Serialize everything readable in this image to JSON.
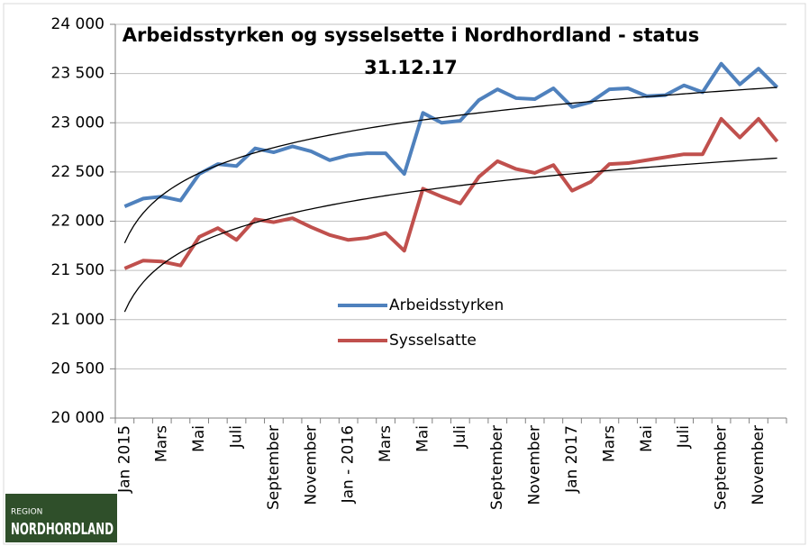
{
  "chart_data": {
    "type": "line",
    "title": [
      "Arbeidsstyrken og sysselsette i  Nordhordland - status",
      "31.12.17"
    ],
    "categories": [
      "Jan 2015",
      null,
      "Mars",
      null,
      "Mai",
      null,
      "Juli",
      null,
      "September",
      null,
      "November",
      null,
      "Jan - 2016",
      null,
      "Mars",
      null,
      "Mai",
      null,
      "Juli",
      null,
      "September",
      null,
      "November",
      null,
      "Jan 2017",
      null,
      "Mars",
      null,
      "Mai",
      null,
      "Juli",
      null,
      "September",
      null,
      "November",
      null
    ],
    "series": [
      {
        "name": "Arbeidsstyrken",
        "color": "#4f81bd",
        "values": [
          22150,
          22230,
          22250,
          22210,
          22480,
          22580,
          22560,
          22740,
          22700,
          22760,
          22710,
          22620,
          22670,
          22690,
          22690,
          22480,
          23100,
          23000,
          23020,
          23230,
          23340,
          23250,
          23240,
          23350,
          23160,
          23210,
          23340,
          23350,
          23270,
          23280,
          23380,
          23310,
          23600,
          23390,
          23550,
          23360
        ]
      },
      {
        "name": "Sysselsatte",
        "color": "#c0504d",
        "values": [
          21520,
          21600,
          21590,
          21550,
          21840,
          21930,
          21810,
          22020,
          21990,
          22030,
          21940,
          21860,
          21810,
          21830,
          21880,
          21700,
          22330,
          22250,
          22180,
          22450,
          22610,
          22530,
          22490,
          22570,
          22310,
          22400,
          22580,
          22590,
          22620,
          22650,
          22680,
          22680,
          23040,
          22850,
          23040,
          22810
        ]
      }
    ],
    "ylim": [
      20000,
      24000
    ],
    "yticks": [
      {
        "value": 20000,
        "label": "20 000"
      },
      {
        "value": 20500,
        "label": "20 500"
      },
      {
        "value": 21000,
        "label": "21 000"
      },
      {
        "value": 21500,
        "label": "21 500"
      },
      {
        "value": 22000,
        "label": "22 000"
      },
      {
        "value": 22500,
        "label": "22 500"
      },
      {
        "value": 23000,
        "label": "23 000"
      },
      {
        "value": 23500,
        "label": "23 500"
      },
      {
        "value": 24000,
        "label": "24 000"
      }
    ],
    "grid": true,
    "trendline": "logarithmic",
    "legend": "center"
  },
  "logo": {
    "region": "REGION",
    "name": "NORDHORDLAND"
  }
}
